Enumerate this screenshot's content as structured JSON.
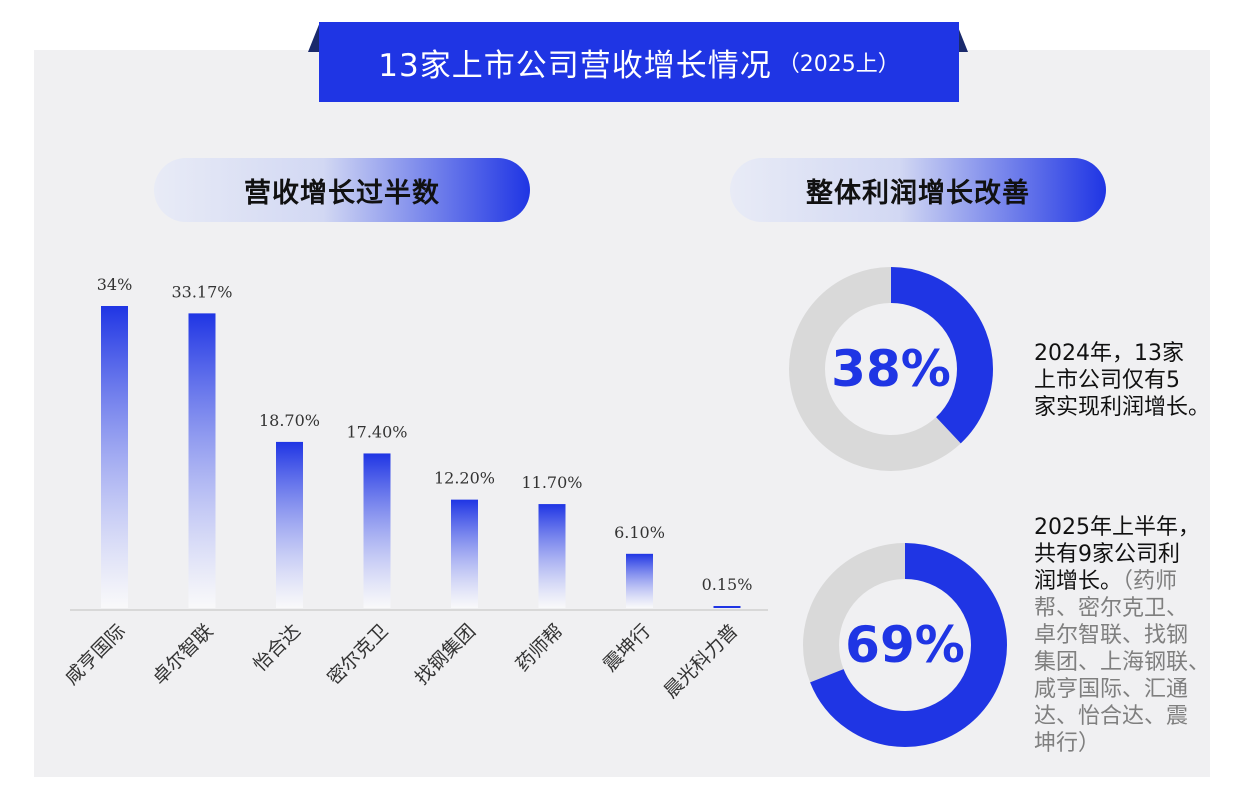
{
  "title": {
    "main": "13家上市公司营收增长情况",
    "sub": "（2025上）"
  },
  "left_section": {
    "heading": "营收增长过半数"
  },
  "right_section": {
    "heading": "整体利润增长改善"
  },
  "chart_data": [
    {
      "type": "bar",
      "categories": [
        "咸亨国际",
        "卓尔智联",
        "怡合达",
        "密尔克卫",
        "找钢集团",
        "药师帮",
        "震坤行",
        "晨光科力普"
      ],
      "values": [
        34,
        33.17,
        18.7,
        17.4,
        12.2,
        11.7,
        6.1,
        0.15
      ],
      "data_labels": [
        "34%",
        "33.17%",
        "18.70%",
        "17.40%",
        "12.20%",
        "11.70%",
        "6.10%",
        "0.15%"
      ],
      "ylim": [
        0,
        34
      ],
      "colors": {
        "bar_top": "#1f35e4",
        "bar_bottom": "#ffffff"
      }
    },
    {
      "type": "pie",
      "variant": "donut",
      "label": "38%",
      "value": 38,
      "colors": {
        "filled": "#1f35e4",
        "rest": "#d9d9d9"
      }
    },
    {
      "type": "pie",
      "variant": "donut",
      "label": "69%",
      "value": 69,
      "colors": {
        "filled": "#1f35e4",
        "rest": "#d9d9d9"
      }
    }
  ],
  "notes": {
    "note1": [
      "2024年，13家",
      "上市公司仅有5",
      "家实现利润增长。"
    ],
    "note2_main": [
      "2025年上半年，",
      "共有9家公司利",
      "润增长。"
    ],
    "note2_muted_first": "（药师",
    "note2_muted": [
      "帮、密尔克卫、",
      "卓尔智联、找钢",
      "集团、上海钢联、",
      "咸亨国际、汇通",
      "达、怡合达、震",
      "坤行）"
    ]
  }
}
